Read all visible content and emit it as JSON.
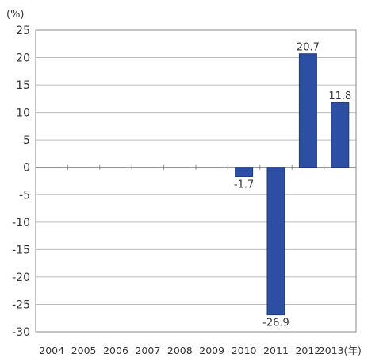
{
  "chart_data": {
    "type": "bar",
    "unit_label": "(%)",
    "x_unit_suffix": "(年)",
    "categories": [
      "2004",
      "2005",
      "2006",
      "2007",
      "2008",
      "2009",
      "2010",
      "2011",
      "2012",
      "2013"
    ],
    "values": [
      null,
      null,
      null,
      null,
      null,
      null,
      -1.7,
      -26.9,
      20.7,
      11.8
    ],
    "data_labels": [
      "",
      "",
      "",
      "",
      "",
      "",
      "-1.7",
      "-26.9",
      "20.7",
      "11.8"
    ],
    "ylim": [
      -30,
      25
    ],
    "yticks": [
      25,
      20,
      15,
      10,
      5,
      0,
      -5,
      -10,
      -15,
      -20,
      -25,
      -30
    ],
    "grid": true,
    "bar_color": "#2d4fa3",
    "title": "",
    "xlabel": "",
    "ylabel": ""
  }
}
